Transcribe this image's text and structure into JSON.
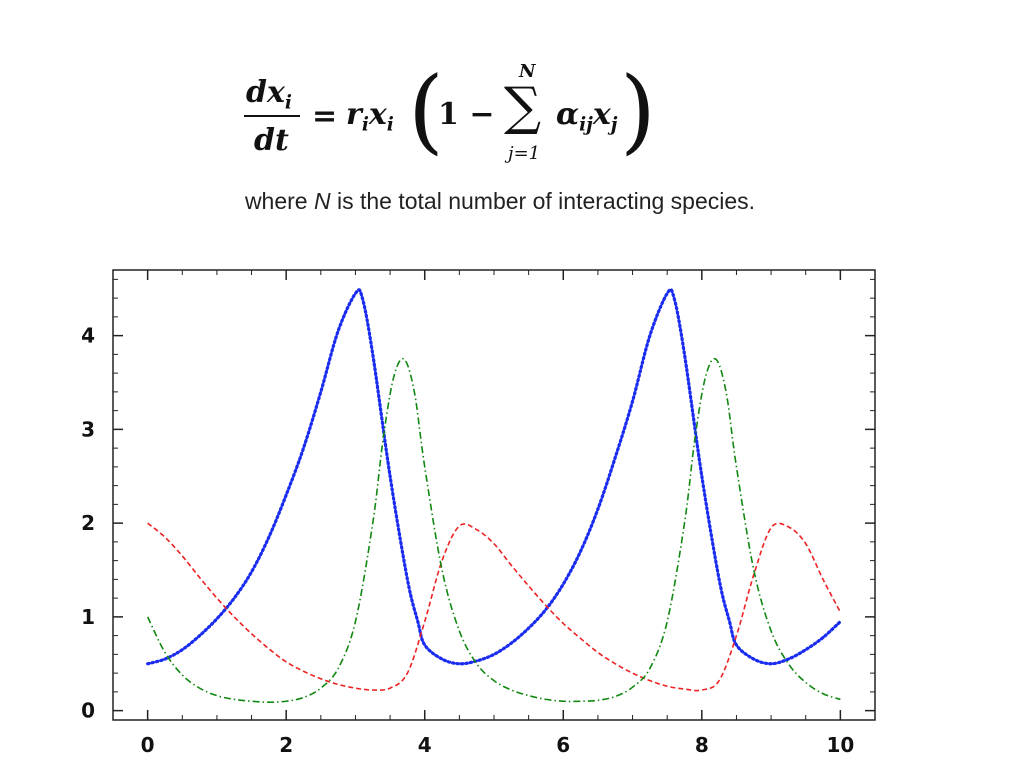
{
  "equation": {
    "lhs_num": "dx",
    "lhs_sub": "i",
    "lhs_den": "dt",
    "eq": "=",
    "r": "r",
    "r_sub": "i",
    "x": "x",
    "x_sub": "i",
    "open": "(",
    "one_minus": "1 −",
    "sum_symbol": "∑",
    "sum_top": "N",
    "sum_bottom": "j=1",
    "alpha": "α",
    "alpha_sub": "ij",
    "xj": "x",
    "xj_sub": "j",
    "close": ")"
  },
  "caption": {
    "before": "where ",
    "var": "N",
    "after": " is the total number of interacting species."
  },
  "chart_data": {
    "type": "line",
    "xlim": [
      -0.5,
      10.5
    ],
    "ylim": [
      -0.1,
      4.7
    ],
    "x_ticks": [
      0,
      2,
      4,
      6,
      8,
      10
    ],
    "y_ticks": [
      0,
      1,
      2,
      3,
      4
    ],
    "grid": false,
    "series": [
      {
        "color": "#1a2cf0",
        "style": "dotted",
        "x": [
          0,
          0.25,
          0.5,
          0.75,
          1,
          1.25,
          1.5,
          1.75,
          2,
          2.25,
          2.5,
          2.75,
          3.0,
          3.1,
          3.25,
          3.5,
          3.75,
          3.9,
          4.0,
          4.25,
          4.5,
          4.75,
          5.0,
          5.25,
          5.5,
          5.75,
          6.0,
          6.25,
          6.5,
          6.75,
          7.0,
          7.25,
          7.5,
          7.6,
          7.75,
          8.0,
          8.25,
          8.4,
          8.5,
          8.75,
          9.0,
          9.25,
          9.5,
          9.75,
          10.0
        ],
        "y": [
          0.5,
          0.55,
          0.65,
          0.8,
          0.98,
          1.2,
          1.48,
          1.85,
          2.3,
          2.8,
          3.4,
          4.05,
          4.45,
          4.4,
          3.8,
          2.5,
          1.4,
          0.95,
          0.7,
          0.55,
          0.5,
          0.53,
          0.6,
          0.72,
          0.88,
          1.08,
          1.35,
          1.7,
          2.15,
          2.7,
          3.3,
          4.0,
          4.45,
          4.4,
          3.8,
          2.5,
          1.4,
          0.95,
          0.7,
          0.55,
          0.5,
          0.55,
          0.65,
          0.78,
          0.95
        ]
      },
      {
        "color": "#ee2222",
        "style": "dashed",
        "x": [
          0,
          0.25,
          0.5,
          0.75,
          1,
          1.25,
          1.5,
          1.75,
          2,
          2.25,
          2.5,
          2.75,
          3.0,
          3.25,
          3.5,
          3.75,
          4.0,
          4.25,
          4.5,
          4.75,
          5.0,
          5.25,
          5.5,
          5.75,
          6.0,
          6.25,
          6.5,
          6.75,
          7.0,
          7.25,
          7.5,
          7.75,
          8.0,
          8.25,
          8.5,
          8.75,
          9.0,
          9.25,
          9.5,
          9.75,
          10.0
        ],
        "y": [
          2.0,
          1.85,
          1.65,
          1.42,
          1.2,
          1.0,
          0.82,
          0.66,
          0.52,
          0.42,
          0.34,
          0.28,
          0.24,
          0.22,
          0.24,
          0.4,
          0.95,
          1.6,
          1.97,
          1.93,
          1.78,
          1.55,
          1.33,
          1.12,
          0.93,
          0.77,
          0.62,
          0.5,
          0.4,
          0.32,
          0.26,
          0.23,
          0.22,
          0.32,
          0.8,
          1.45,
          1.95,
          1.96,
          1.78,
          1.4,
          1.05
        ]
      },
      {
        "color": "#118811",
        "style": "dashdot",
        "x": [
          0,
          0.25,
          0.5,
          0.75,
          1,
          1.25,
          1.5,
          1.75,
          2,
          2.25,
          2.5,
          2.75,
          3.0,
          3.25,
          3.4,
          3.55,
          3.7,
          3.85,
          4.0,
          4.25,
          4.5,
          4.75,
          5.0,
          5.25,
          5.5,
          5.75,
          6.0,
          6.25,
          6.5,
          6.75,
          7.0,
          7.25,
          7.5,
          7.75,
          7.9,
          8.05,
          8.2,
          8.35,
          8.5,
          8.75,
          9.0,
          9.25,
          9.5,
          9.75,
          10.0
        ],
        "y": [
          1.0,
          0.62,
          0.38,
          0.24,
          0.16,
          0.12,
          0.1,
          0.09,
          0.1,
          0.14,
          0.24,
          0.45,
          0.95,
          2.0,
          2.9,
          3.55,
          3.75,
          3.4,
          2.6,
          1.5,
          0.85,
          0.5,
          0.32,
          0.22,
          0.16,
          0.12,
          0.1,
          0.1,
          0.11,
          0.15,
          0.25,
          0.45,
          0.95,
          2.0,
          2.9,
          3.55,
          3.75,
          3.4,
          2.6,
          1.5,
          0.85,
          0.5,
          0.3,
          0.18,
          0.12
        ]
      }
    ]
  }
}
